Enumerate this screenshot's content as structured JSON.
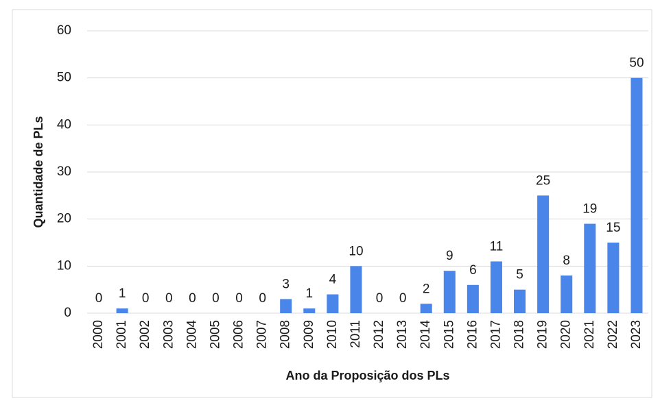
{
  "chart_data": {
    "type": "bar",
    "x_label": "Ano da Proposição dos PLs",
    "y_label": "Quantidade de PLs",
    "categories": [
      "2000",
      "2001",
      "2002",
      "2003",
      "2004",
      "2005",
      "2006",
      "2007",
      "2008",
      "2009",
      "2010",
      "2011",
      "2012",
      "2013",
      "2014",
      "2015",
      "2016",
      "2017",
      "2018",
      "2019",
      "2020",
      "2021",
      "2022",
      "2023"
    ],
    "values": [
      0,
      1,
      0,
      0,
      0,
      0,
      0,
      0,
      3,
      1,
      4,
      10,
      0,
      0,
      2,
      9,
      6,
      11,
      5,
      25,
      8,
      19,
      15,
      50
    ],
    "color": "#4a86ea",
    "ylim": [
      0,
      60
    ],
    "yticks": [
      0,
      10,
      20,
      30,
      40,
      50,
      60
    ],
    "grid": true
  }
}
